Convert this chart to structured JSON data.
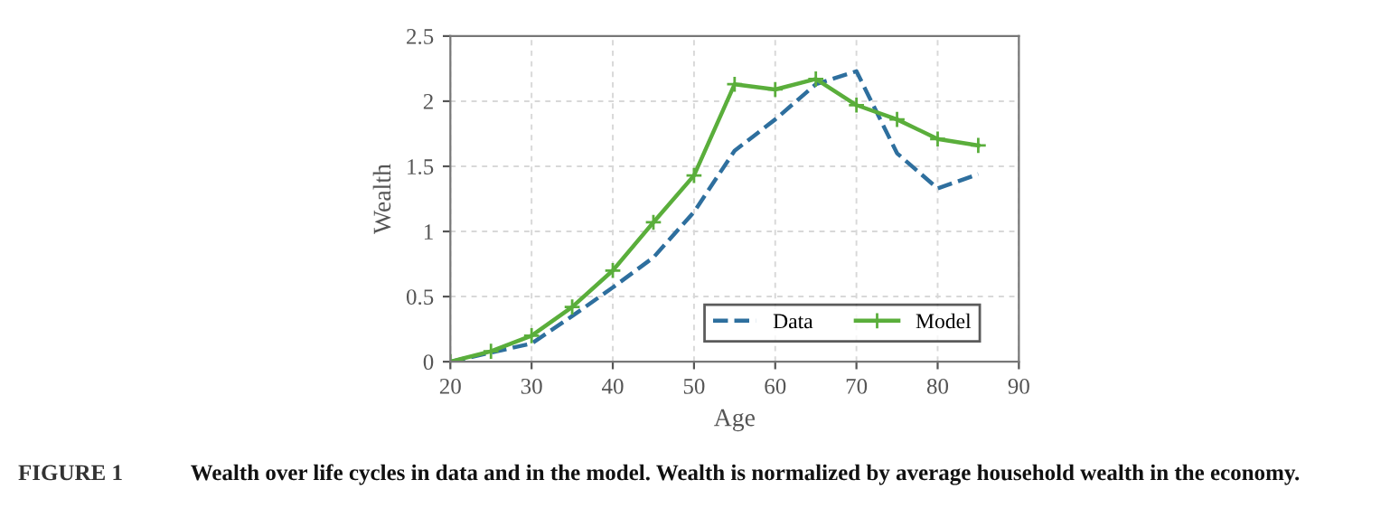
{
  "chart_data": {
    "type": "line",
    "xlabel": "Age",
    "ylabel": "Wealth",
    "x": [
      20,
      25,
      30,
      35,
      40,
      45,
      50,
      55,
      60,
      65,
      70,
      75,
      80,
      85
    ],
    "series": [
      {
        "name": "Data",
        "color": "#2e6f9e",
        "line_style": "dashed",
        "marker": "none",
        "values": [
          0,
          0.07,
          0.14,
          0.35,
          0.57,
          0.8,
          1.15,
          1.62,
          1.86,
          2.13,
          2.23,
          1.6,
          1.33,
          1.44
        ]
      },
      {
        "name": "Model",
        "color": "#5aae3b",
        "line_style": "solid",
        "marker": "cross",
        "values": [
          0,
          0.08,
          0.2,
          0.42,
          0.7,
          1.07,
          1.43,
          2.13,
          2.09,
          2.17,
          1.97,
          1.86,
          1.71,
          1.66
        ]
      }
    ],
    "xlim": [
      20,
      90
    ],
    "xticks": [
      20,
      30,
      40,
      50,
      60,
      70,
      80,
      90
    ],
    "ylim": [
      0,
      2.5
    ],
    "yticks": [
      0,
      0.5,
      1,
      1.5,
      2,
      2.5
    ],
    "grid": true,
    "legend": "bottom right",
    "annotations": [
      "FIGURE 1",
      "Wealth over life cycles in data and in the model. Wealth is normalized by average household wealth in the economy."
    ]
  }
}
